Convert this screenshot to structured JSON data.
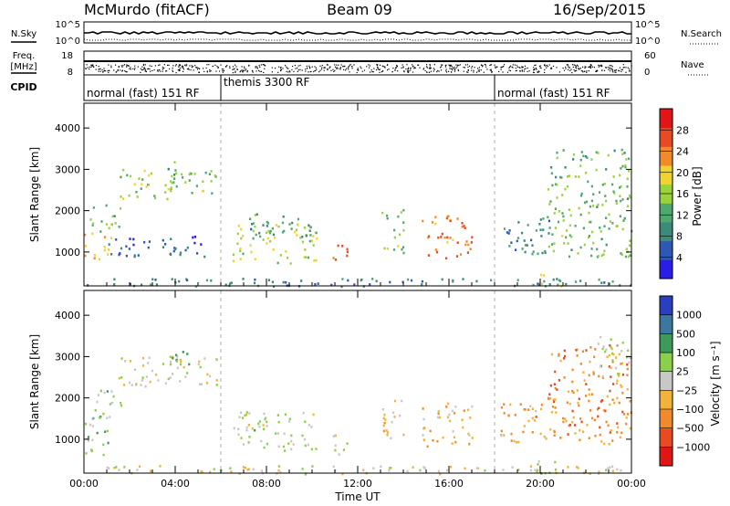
{
  "header": {
    "title": "McMurdo (fitACF)",
    "beam": "Beam 09",
    "date": "16/Sep/2015"
  },
  "top_panels": {
    "nsky_label": "N.Sky",
    "nsearch_label": "N.Search",
    "nsky_ticks": [
      "10^5",
      "10^0"
    ],
    "nsearch_ticks": [
      "10^5",
      "10^0"
    ],
    "freq_label_1": "Freq.",
    "freq_label_2": "[MHz]",
    "freq_ticks": [
      "18",
      "8"
    ],
    "nave_label": "Nave",
    "nave_ticks": [
      "60",
      "0"
    ],
    "cpid_label": "CPID",
    "cpid_segments": [
      {
        "label": "normal (fast) 151 RF",
        "start_h": 0,
        "end_h": 6
      },
      {
        "label": "themis 3300 RF",
        "start_h": 6,
        "end_h": 18
      },
      {
        "label": "normal (fast) 151 RF",
        "start_h": 18,
        "end_h": 24
      }
    ]
  },
  "x_axis": {
    "label": "Time UT",
    "range_h": [
      0,
      24
    ],
    "ticks": [
      {
        "h": 0,
        "label": "00:00"
      },
      {
        "h": 4,
        "label": "04:00"
      },
      {
        "h": 8,
        "label": "08:00"
      },
      {
        "h": 12,
        "label": "12:00"
      },
      {
        "h": 16,
        "label": "16:00"
      },
      {
        "h": 20,
        "label": "20:00"
      },
      {
        "h": 24,
        "label": "00:00"
      }
    ]
  },
  "colors": {
    "power": [
      "#2a1de8",
      "#2f57b4",
      "#3c8a7a",
      "#4fa870",
      "#9ad23a",
      "#f0d230",
      "#f08a2a",
      "#e84a22",
      "#e01515"
    ],
    "velocity": [
      "#e01515",
      "#e84a22",
      "#f08a2a",
      "#f3b33a",
      "#c8c8c8",
      "#8ad04a",
      "#3c9a5a",
      "#3a78a0",
      "#2a3ec0"
    ]
  },
  "chart_data": [
    {
      "type": "heatmap",
      "title": "Power",
      "ylabel": "Slant Range [km]",
      "xlabel": "",
      "ylim": [
        180,
        4600
      ],
      "yticks": [
        "1000",
        "2000",
        "3000",
        "4000"
      ],
      "colorbar_label": "Power [dB]",
      "colorbar_ticks": [
        "4",
        "8",
        "12",
        "16",
        "20",
        "24",
        "28"
      ],
      "colorbar_range": [
        0,
        30
      ],
      "regions": [
        {
          "t": [
            0.0,
            1.2
          ],
          "r": [
            850,
            1500
          ],
          "v": 20
        },
        {
          "t": [
            0.2,
            1.6
          ],
          "r": [
            1500,
            2200
          ],
          "v": 12
        },
        {
          "t": [
            1.5,
            5.8
          ],
          "r": [
            2300,
            3050
          ],
          "v": 14
        },
        {
          "t": [
            3.4,
            4.6
          ],
          "r": [
            2800,
            3200
          ],
          "v": 11
        },
        {
          "t": [
            1.0,
            5.5
          ],
          "r": [
            900,
            1400
          ],
          "v": 6
        },
        {
          "t": [
            6.5,
            10.2
          ],
          "r": [
            750,
            1700
          ],
          "v": 16
        },
        {
          "t": [
            7.2,
            10.0
          ],
          "r": [
            1350,
            1950
          ],
          "v": 10
        },
        {
          "t": [
            10.8,
            11.6
          ],
          "r": [
            650,
            1200
          ],
          "v": 24
        },
        {
          "t": [
            13.0,
            14.0
          ],
          "r": [
            1000,
            2050
          ],
          "v": 14
        },
        {
          "t": [
            14.8,
            17.0
          ],
          "r": [
            850,
            1900
          ],
          "v": 22
        },
        {
          "t": [
            18.2,
            20.4
          ],
          "r": [
            950,
            1900
          ],
          "v": 8
        },
        {
          "t": [
            20.3,
            24.0
          ],
          "r": [
            900,
            3500
          ],
          "v": 13
        },
        {
          "t": [
            19.8,
            21.0
          ],
          "r": [
            180,
            520
          ],
          "v": 15
        },
        {
          "t": [
            0.0,
            24.0
          ],
          "r": [
            180,
            380
          ],
          "v": 9
        }
      ]
    },
    {
      "type": "heatmap",
      "title": "Velocity",
      "ylabel": "Slant Range [km]",
      "xlabel": "Time UT",
      "ylim": [
        180,
        4600
      ],
      "yticks": [
        "1000",
        "2000",
        "3000",
        "4000"
      ],
      "colorbar_label": "Velocity [m s⁻¹]",
      "colorbar_ticks": [
        "−1000",
        "−500",
        "−100",
        "−25",
        "25",
        "100",
        "500",
        "1000"
      ],
      "colorbar_range": [
        -1200,
        1200
      ],
      "regions": [
        {
          "t": [
            0.0,
            1.2
          ],
          "r": [
            600,
            1600
          ],
          "v": 200
        },
        {
          "t": [
            0.2,
            1.6
          ],
          "r": [
            1500,
            2200
          ],
          "v": 150
        },
        {
          "t": [
            1.5,
            5.8
          ],
          "r": [
            2300,
            3050
          ],
          "v": -60
        },
        {
          "t": [
            3.4,
            4.6
          ],
          "r": [
            2700,
            3200
          ],
          "v": 400
        },
        {
          "t": [
            6.5,
            10.2
          ],
          "r": [
            750,
            1700
          ],
          "v": 120
        },
        {
          "t": [
            10.8,
            11.6
          ],
          "r": [
            650,
            1200
          ],
          "v": 100
        },
        {
          "t": [
            13.0,
            14.0
          ],
          "r": [
            1000,
            2050
          ],
          "v": -150
        },
        {
          "t": [
            14.8,
            17.0
          ],
          "r": [
            850,
            1900
          ],
          "v": -300
        },
        {
          "t": [
            18.2,
            20.4
          ],
          "r": [
            950,
            1900
          ],
          "v": -400
        },
        {
          "t": [
            20.3,
            24.0
          ],
          "r": [
            900,
            3300
          ],
          "v": -500
        },
        {
          "t": [
            22.5,
            24.0
          ],
          "r": [
            2500,
            3500
          ],
          "v": 20
        },
        {
          "t": [
            19.8,
            21.0
          ],
          "r": [
            180,
            520
          ],
          "v": 200
        },
        {
          "t": [
            0.0,
            24.0
          ],
          "r": [
            180,
            380
          ],
          "v": -40
        }
      ]
    }
  ]
}
